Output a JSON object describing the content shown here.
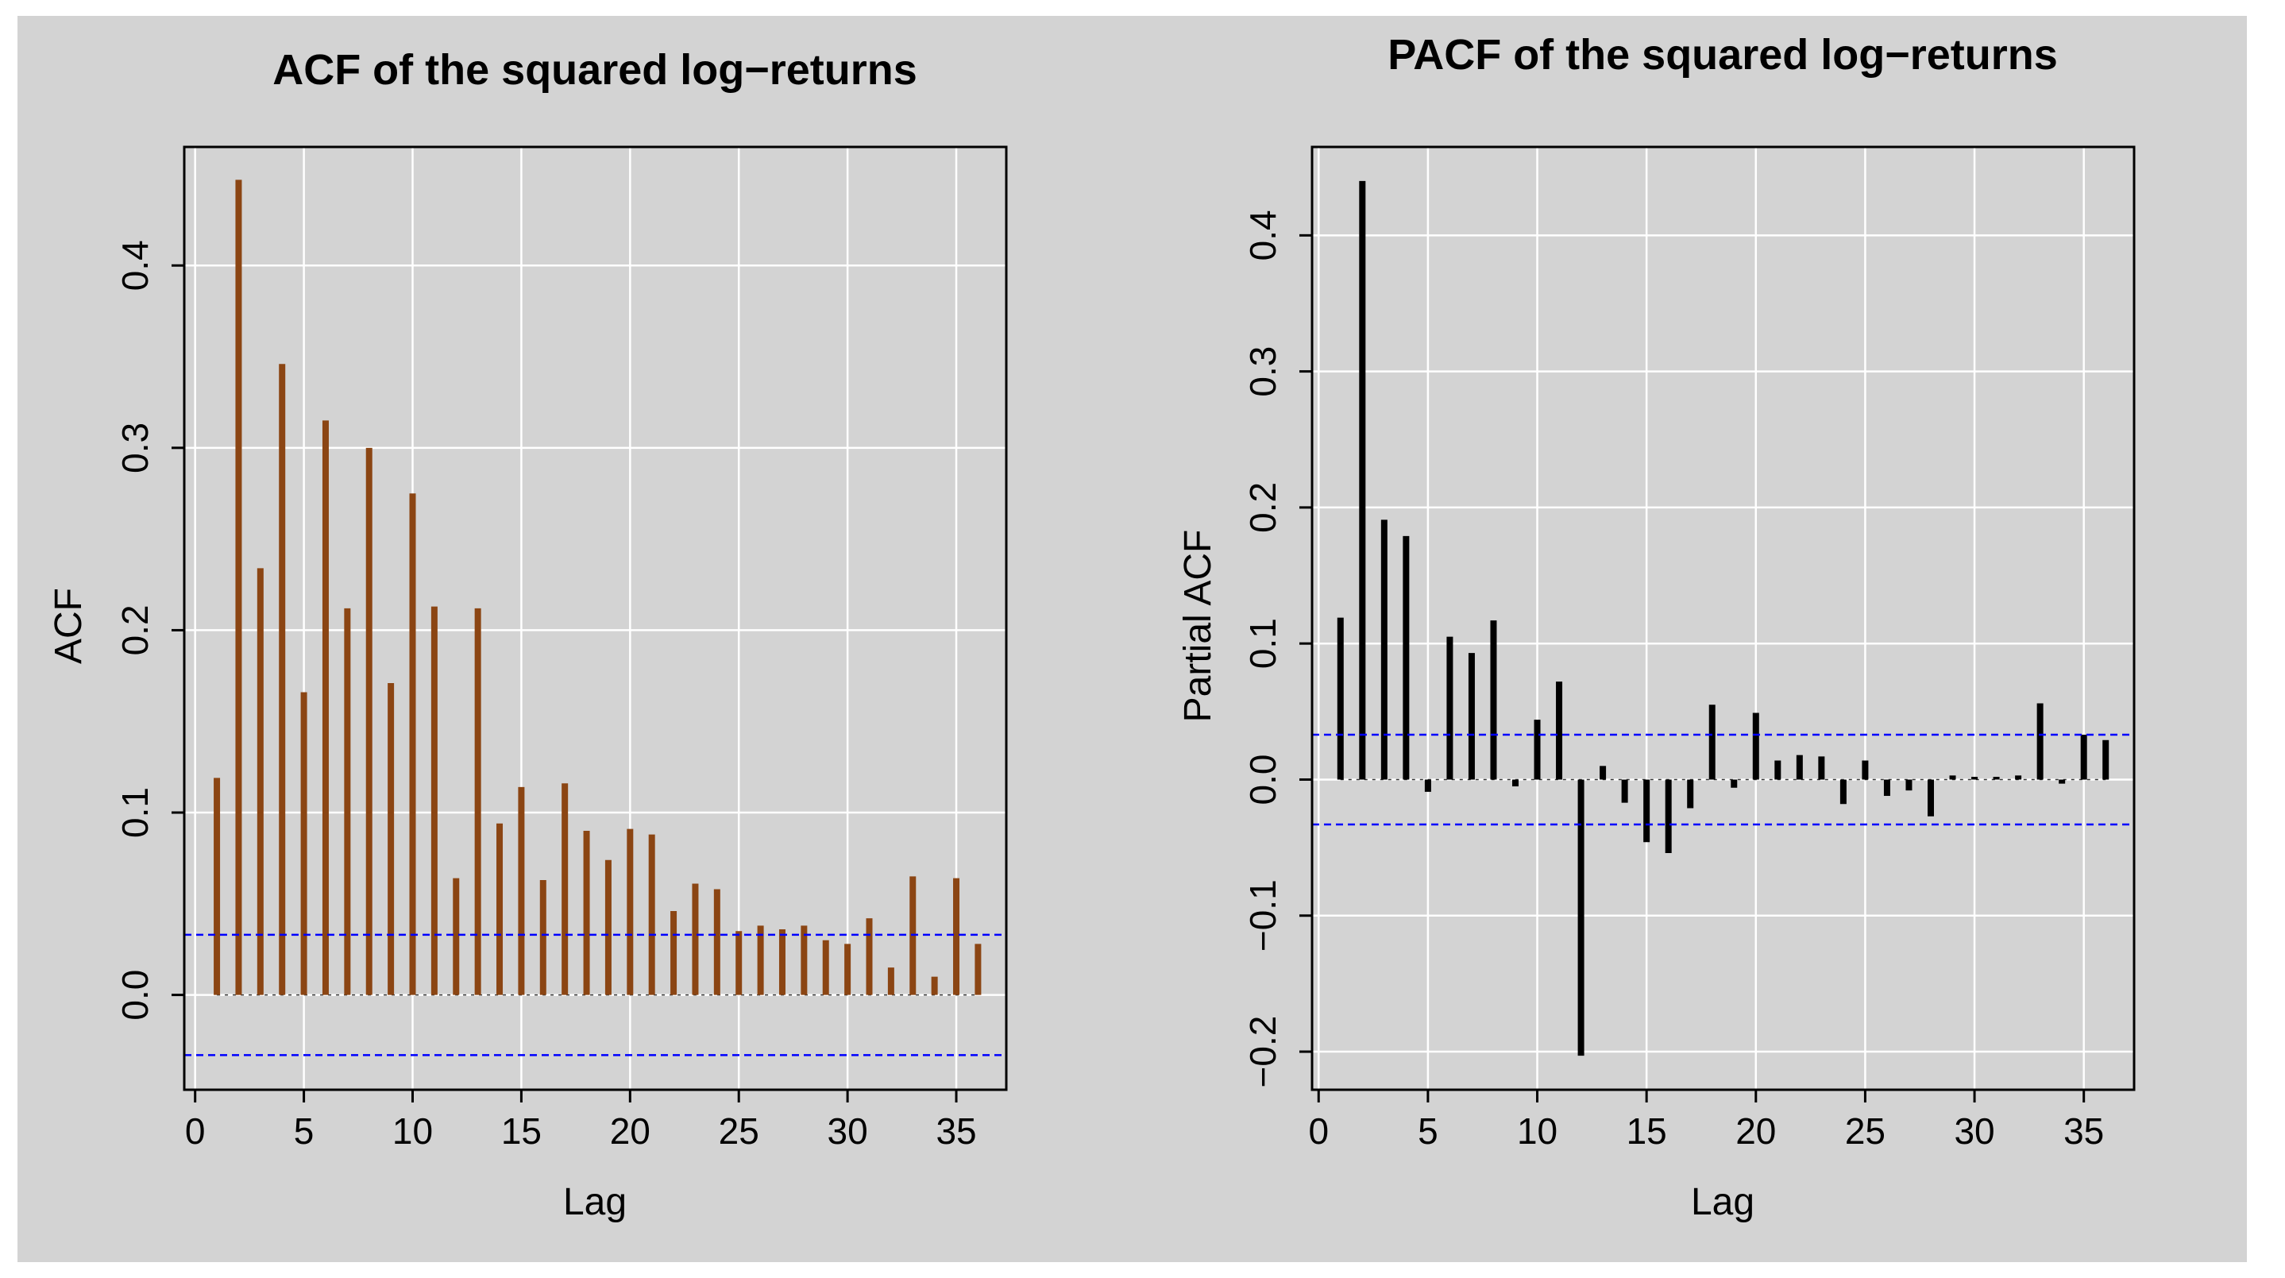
{
  "chart_data": [
    {
      "type": "bar",
      "title": "ACF of the squared log−returns",
      "xlabel": "Lag",
      "ylabel": "ACF",
      "xlim": [
        -0.5,
        37.3
      ],
      "ylim": [
        -0.052,
        0.465
      ],
      "xticks": [
        "0",
        "5",
        "10",
        "15",
        "20",
        "25",
        "30",
        "35"
      ],
      "yticks": [
        "0.0",
        "0.1",
        "0.2",
        "0.3",
        "0.4"
      ],
      "grid": true,
      "bar_color": "#8B4513",
      "confidence_band": [
        -0.033,
        0.033
      ],
      "band_color": "#0000ff",
      "lags": [
        1,
        2,
        3,
        4,
        5,
        6,
        7,
        8,
        9,
        10,
        11,
        12,
        13,
        14,
        15,
        16,
        17,
        18,
        19,
        20,
        21,
        22,
        23,
        24,
        25,
        26,
        27,
        28,
        29,
        30,
        31,
        32,
        33,
        34,
        35,
        36
      ],
      "values": [
        0.119,
        0.447,
        0.234,
        0.346,
        0.166,
        0.315,
        0.212,
        0.3,
        0.171,
        0.275,
        0.213,
        0.064,
        0.212,
        0.094,
        0.114,
        0.063,
        0.116,
        0.09,
        0.074,
        0.091,
        0.088,
        0.046,
        0.061,
        0.058,
        0.035,
        0.038,
        0.036,
        0.038,
        0.03,
        0.028,
        0.042,
        0.015,
        0.065,
        0.01,
        0.064,
        0.028
      ]
    },
    {
      "type": "bar",
      "title": "PACF of the squared log−returns",
      "xlabel": "Lag",
      "ylabel": "Partial ACF",
      "xlim": [
        -0.3,
        37.3
      ],
      "ylim": [
        -0.228,
        0.465
      ],
      "xticks": [
        "0",
        "5",
        "10",
        "15",
        "20",
        "25",
        "30",
        "35"
      ],
      "yticks": [
        "−0.2",
        "−0.1",
        "0.0",
        "0.1",
        "0.2",
        "0.3",
        "0.4"
      ],
      "grid": true,
      "bar_color": "#000000",
      "confidence_band": [
        -0.033,
        0.033
      ],
      "band_color": "#0000ff",
      "lags": [
        1,
        2,
        3,
        4,
        5,
        6,
        7,
        8,
        9,
        10,
        11,
        12,
        13,
        14,
        15,
        16,
        17,
        18,
        19,
        20,
        21,
        22,
        23,
        24,
        25,
        26,
        27,
        28,
        29,
        30,
        31,
        32,
        33,
        34,
        35,
        36
      ],
      "values": [
        0.119,
        0.44,
        0.191,
        0.179,
        -0.009,
        0.105,
        0.093,
        0.117,
        -0.005,
        0.044,
        0.072,
        -0.203,
        0.01,
        -0.017,
        -0.046,
        -0.054,
        -0.021,
        0.055,
        -0.006,
        0.049,
        0.014,
        0.018,
        0.017,
        -0.018,
        0.014,
        -0.012,
        -0.008,
        -0.027,
        0.003,
        0.002,
        0.002,
        0.003,
        0.056,
        -0.003,
        0.033,
        0.029
      ]
    }
  ]
}
